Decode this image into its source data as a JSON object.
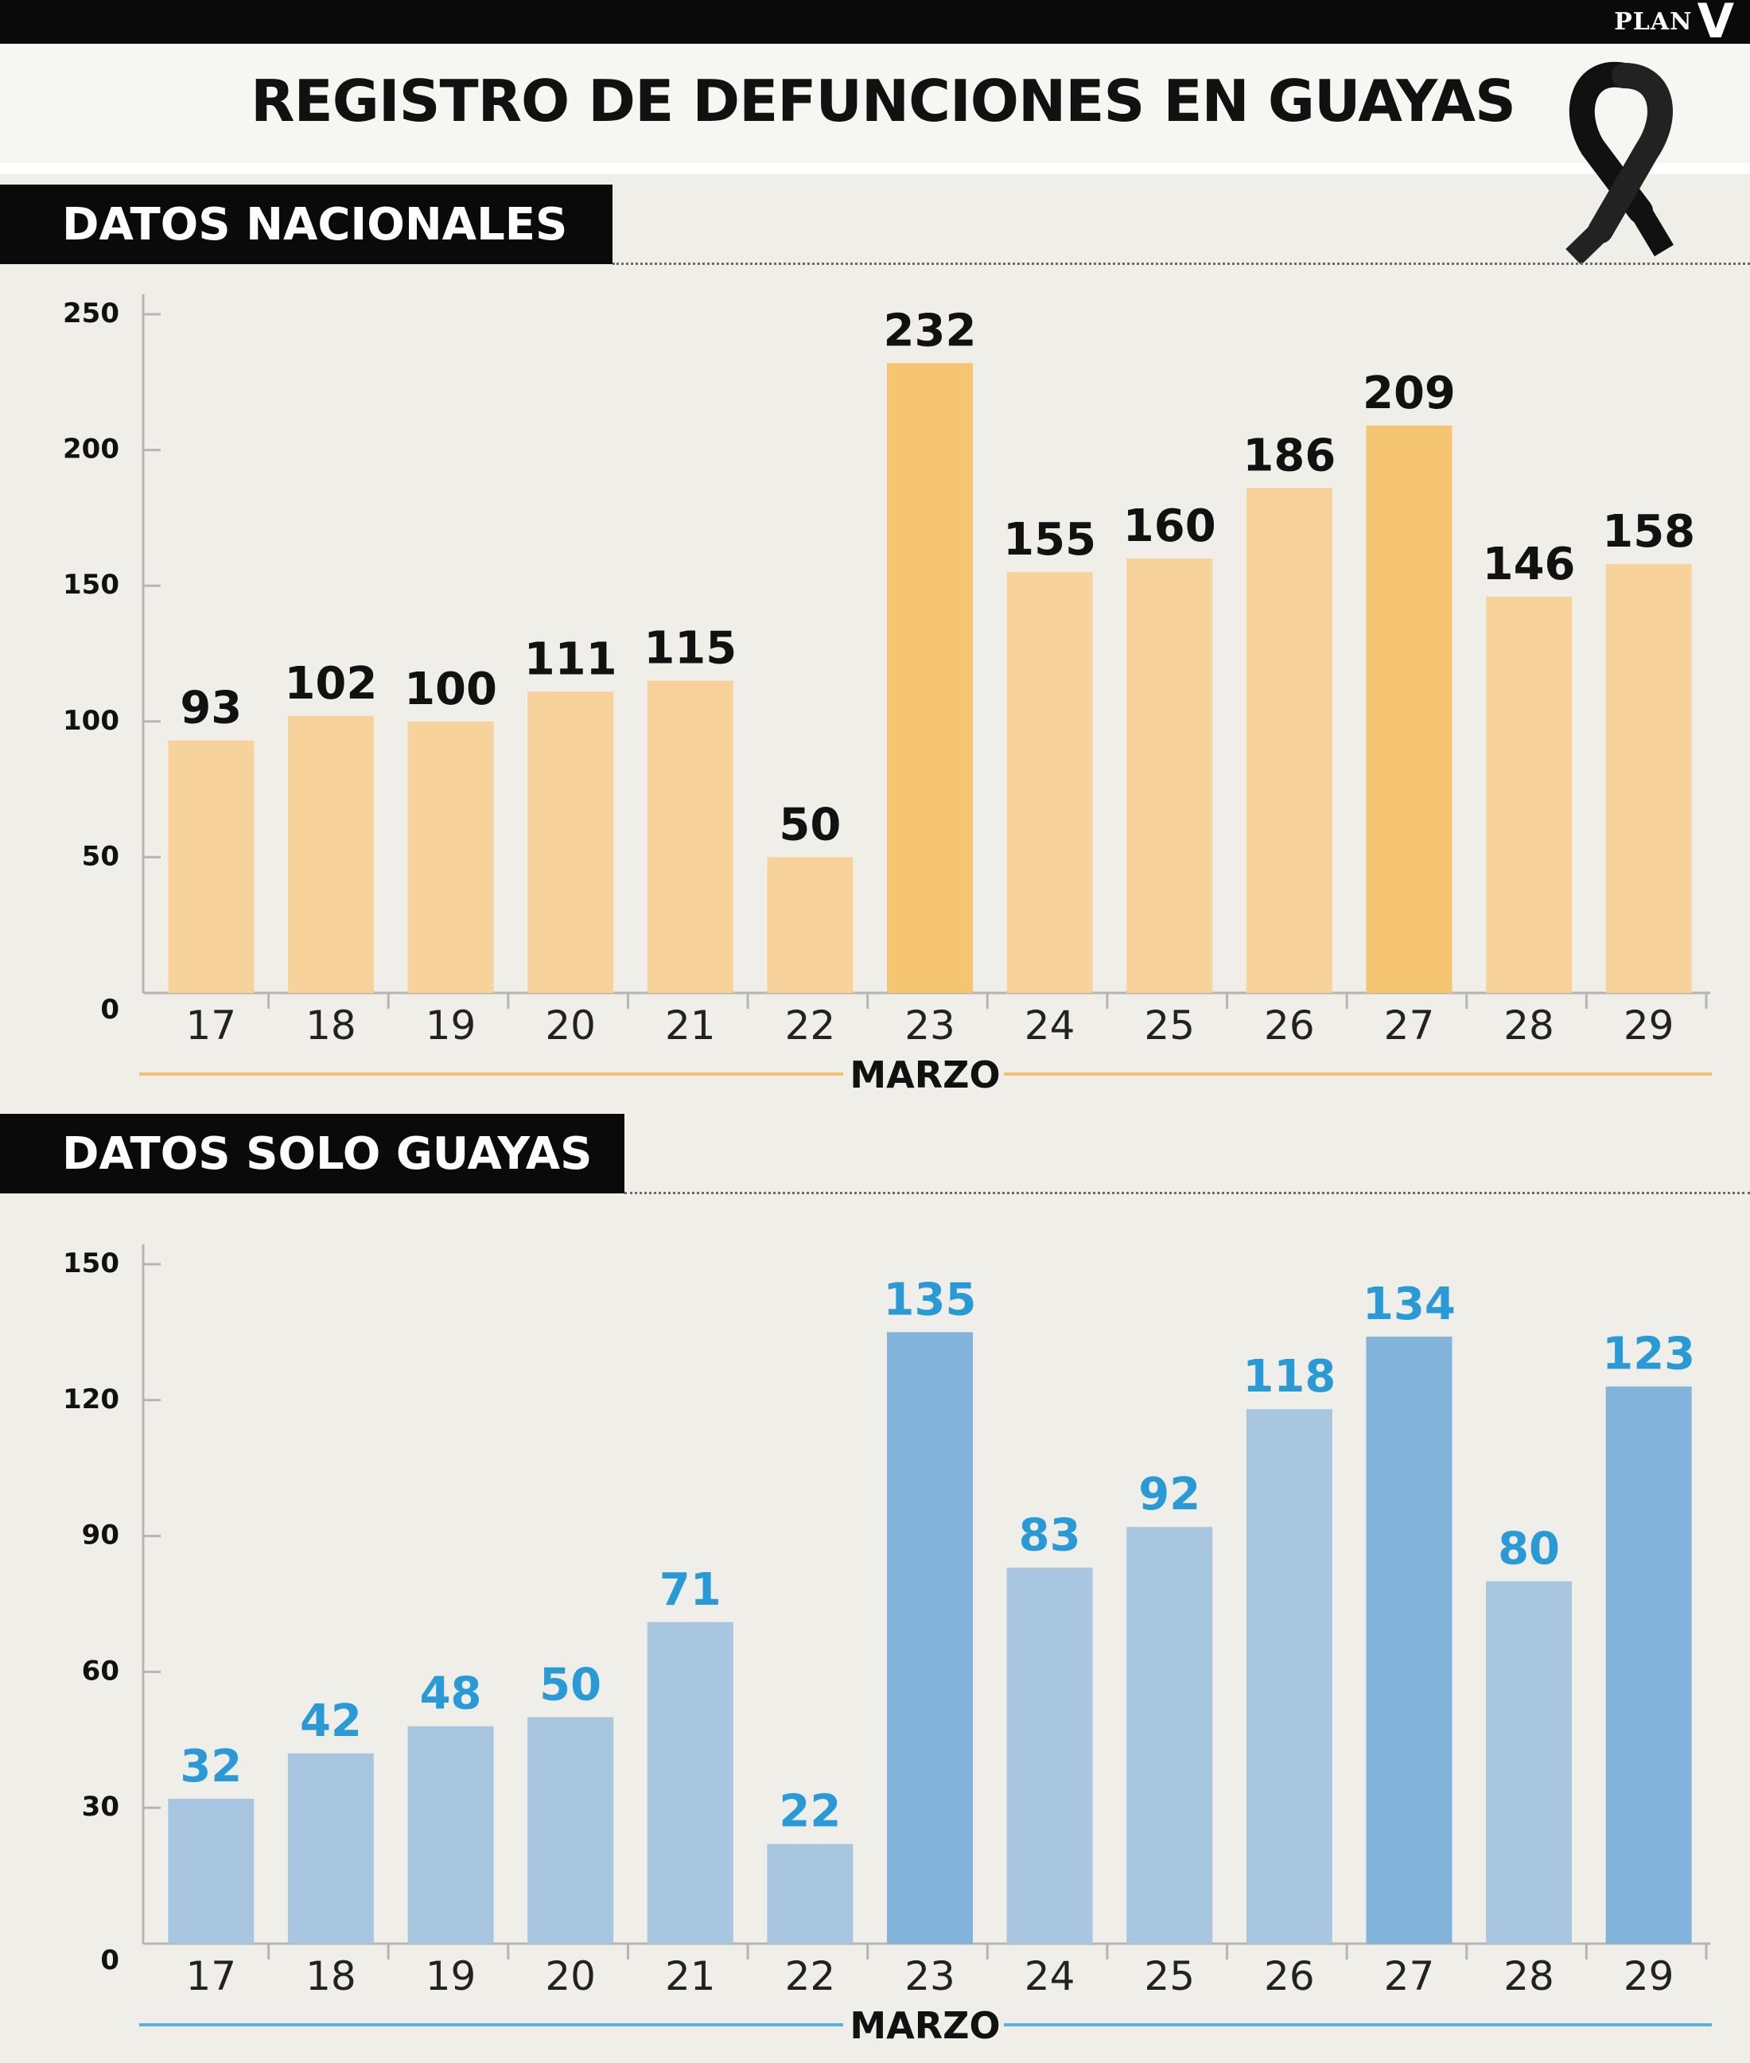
{
  "header": {
    "brand": "PLAN",
    "brand_mark": "V",
    "title": "REGISTRO DE DEFUNCIONES EN GUAYAS",
    "icon": "mourning-ribbon-icon"
  },
  "sections": [
    {
      "label": "DATOS NACIONALES"
    },
    {
      "label": "DATOS SOLO GUAYAS"
    }
  ],
  "chart_data": [
    {
      "type": "bar",
      "title": "",
      "xlabel": "MARZO",
      "ylabel": "",
      "categories": [
        "17",
        "18",
        "19",
        "20",
        "21",
        "22",
        "23",
        "24",
        "25",
        "26",
        "27",
        "28",
        "29"
      ],
      "values": [
        93,
        102,
        100,
        111,
        115,
        50,
        232,
        155,
        160,
        186,
        209,
        146,
        158
      ],
      "ylim": [
        0,
        250
      ],
      "yticks": [
        0,
        50,
        100,
        150,
        200,
        250
      ],
      "grid": false,
      "legend": "none",
      "colors": {
        "bar": "#f7d39b",
        "highlight": "#f6c572",
        "label": "#111111",
        "axis_line": "#f3c06f"
      },
      "highlight_categories": [
        "23",
        "27"
      ]
    },
    {
      "type": "bar",
      "title": "",
      "xlabel": "MARZO",
      "ylabel": "",
      "categories": [
        "17",
        "18",
        "19",
        "20",
        "21",
        "22",
        "23",
        "24",
        "25",
        "26",
        "27",
        "28",
        "29"
      ],
      "values": [
        32,
        42,
        48,
        50,
        71,
        22,
        135,
        83,
        92,
        118,
        134,
        80,
        123
      ],
      "ylim": [
        0,
        150
      ],
      "yticks": [
        0,
        30,
        60,
        90,
        120,
        150
      ],
      "grid": false,
      "legend": "none",
      "colors": {
        "bar": "#a9c6e0",
        "highlight": "#82b3da",
        "label": "#2a9ad6",
        "axis_line": "#4fb3e6"
      },
      "highlight_categories": [
        "23",
        "27",
        "29"
      ]
    }
  ]
}
